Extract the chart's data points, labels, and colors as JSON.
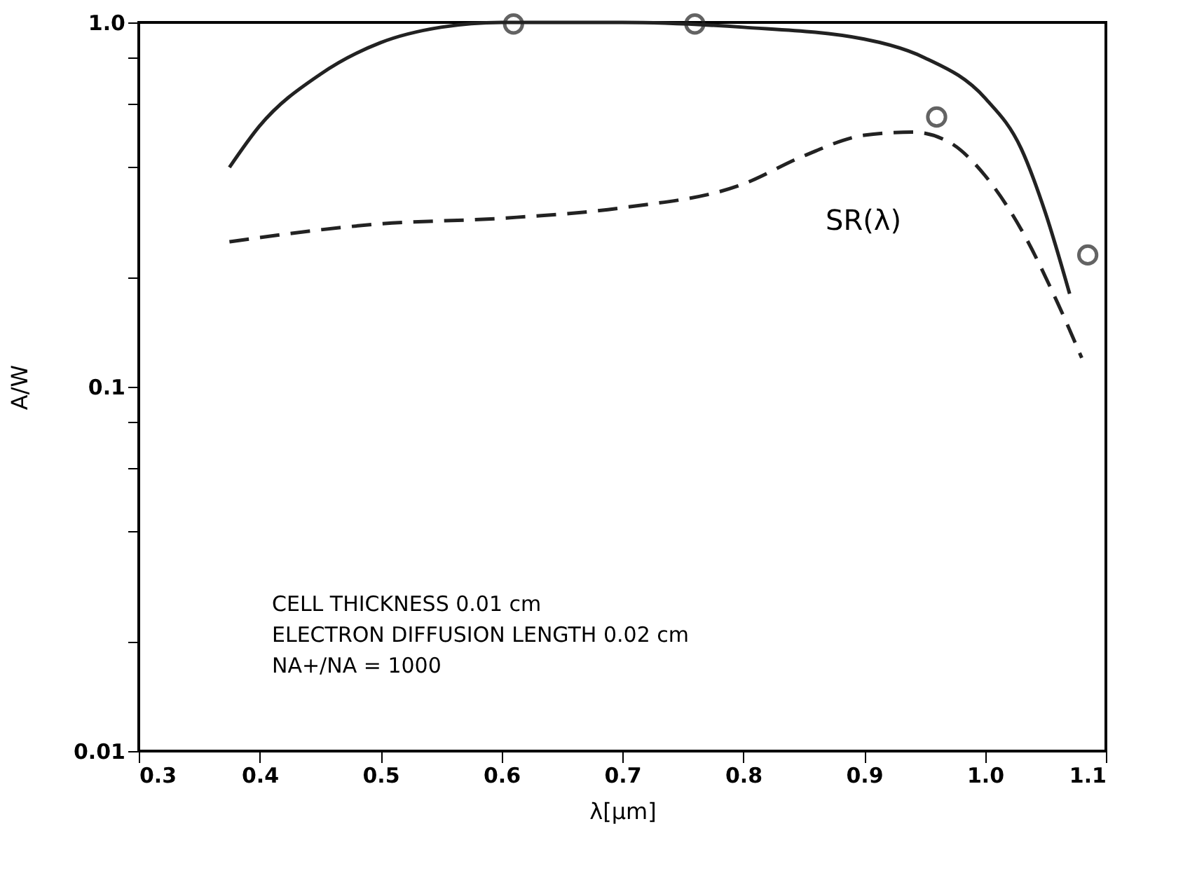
{
  "chart_data": {
    "type": "line",
    "xlabel": "λ[μm]",
    "ylabel": "A/W",
    "log": "y",
    "grid": false,
    "xlim": [
      0.3,
      1.1
    ],
    "xticks": [
      0.3,
      0.4,
      0.5,
      0.6,
      0.7,
      0.8,
      0.9,
      {
        "value": 1.0,
        "label": "1.0"
      },
      1.1
    ],
    "ylim": [
      0.01,
      1.0
    ],
    "yticks": [
      0.01,
      {
        "value": 0.02,
        "label": null
      },
      {
        "value": 0.04,
        "label": null
      },
      {
        "value": 0.06,
        "label": null
      },
      {
        "value": 0.08,
        "label": null
      },
      0.1,
      {
        "value": 0.2,
        "label": null
      },
      {
        "value": 0.4,
        "label": null
      },
      {
        "value": 0.6,
        "label": null
      },
      {
        "value": 0.8,
        "label": null
      },
      {
        "value": 1.0,
        "label": "1.0"
      }
    ],
    "series": [
      {
        "line_style": "solid",
        "marker": "none",
        "color": "#222222",
        "x": [
          0.375,
          0.4,
          0.45,
          0.5,
          0.55,
          0.6,
          0.7,
          0.8,
          0.9,
          0.95,
          1.0,
          1.03,
          1.05,
          1.07
        ],
        "values": [
          0.4,
          0.52,
          0.72,
          0.88,
          0.97,
          1.0,
          1.0,
          0.97,
          0.9,
          0.8,
          0.62,
          0.45,
          0.3,
          0.18
        ]
      },
      {
        "line_style": "dashed",
        "marker": "none",
        "color": "#222222",
        "x": [
          0.375,
          0.5,
          0.6,
          0.7,
          0.8,
          0.85,
          0.9,
          0.94,
          0.97,
          1.0,
          1.03,
          1.06,
          1.08
        ],
        "values": [
          0.25,
          0.28,
          0.29,
          0.31,
          0.36,
          0.43,
          0.49,
          0.5,
          0.47,
          0.38,
          0.27,
          0.17,
          0.12
        ]
      },
      {
        "type": "scatter",
        "marker": "circle",
        "color": "#222222",
        "x": [
          0.61,
          0.76,
          0.96,
          1.085
        ],
        "values": [
          0.99,
          0.99,
          0.55,
          0.23
        ]
      }
    ],
    "annotations": [
      "SR(λ)",
      "CELL THICKNESS 0.01 cm",
      "ELECTRON DIFFUSION LENGTH 0.02 cm",
      "NA+/NA = 1000"
    ]
  }
}
